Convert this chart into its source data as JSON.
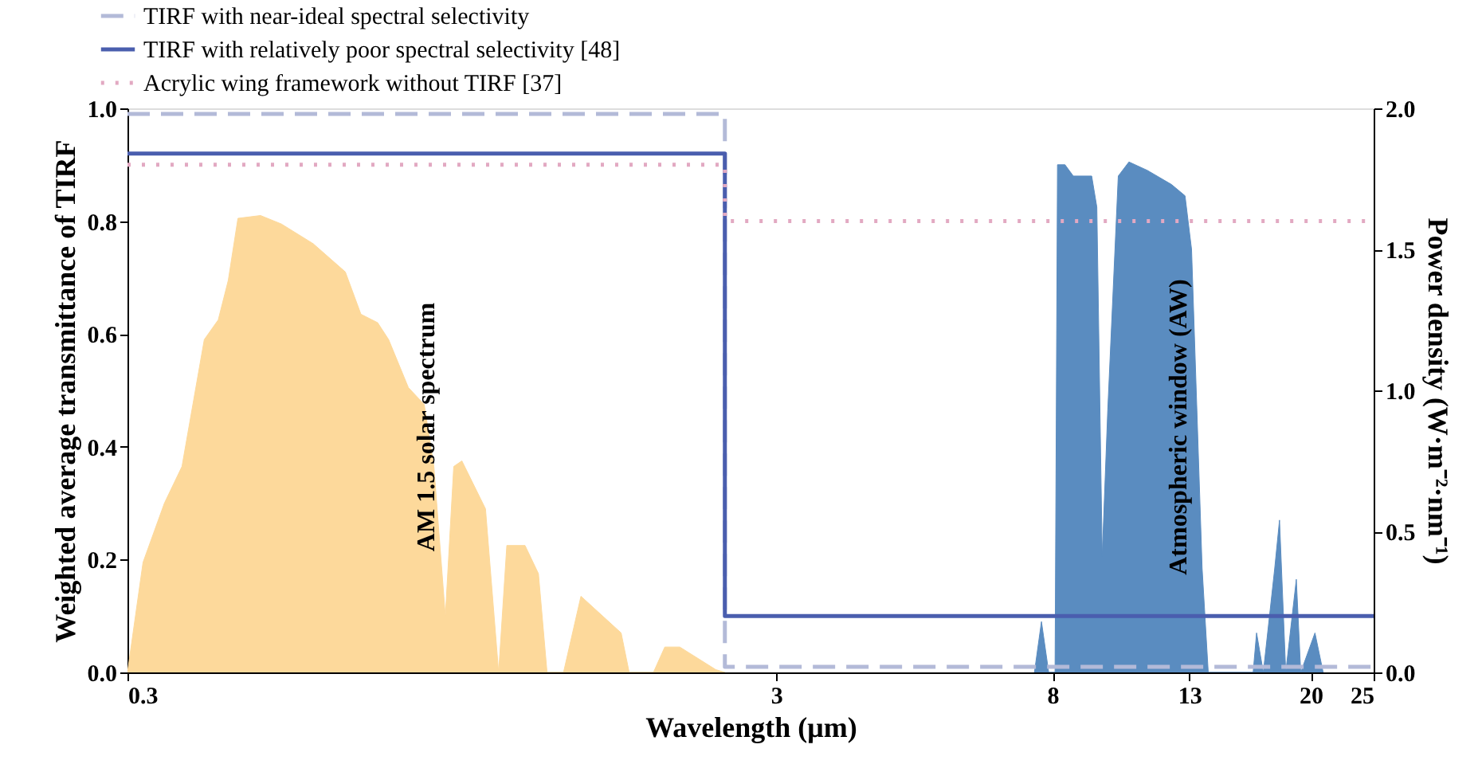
{
  "chart_data": {
    "type": "line",
    "xlabel": "Wavelength (μm)",
    "ylabel": "Weighted average transmittance of TIRF",
    "y2label": "Power density (W·m⁻²·nm⁻¹)",
    "log": "x",
    "grid": false,
    "legend": "top left",
    "xlim": [
      0.3,
      25
    ],
    "xticks": [
      0.3,
      3,
      8,
      13,
      20,
      25
    ],
    "ylim": [
      0,
      1
    ],
    "yticks": [
      {
        "value": 0,
        "label": "0.0"
      },
      0.2,
      0.4,
      0.6,
      0.8,
      {
        "value": 1,
        "label": "1.0"
      }
    ],
    "y2lim": [
      0,
      2
    ],
    "y2ticks": [
      {
        "value": 0,
        "label": "0.0"
      },
      0.5,
      {
        "value": 1,
        "label": "1.0"
      },
      1.5,
      {
        "value": 2,
        "label": "2.0"
      }
    ],
    "series": [
      {
        "type": "area",
        "axis": "y2",
        "color": "#fdd99b",
        "x": [
          0.3,
          0.317,
          0.342,
          0.364,
          0.394,
          0.414,
          0.429,
          0.444,
          0.481,
          0.518,
          0.58,
          0.65,
          0.687,
          0.729,
          0.758,
          0.813,
          0.86,
          0.89,
          0.927,
          0.955,
          0.983,
          1.069,
          1.12,
          1.153,
          1.23,
          1.29,
          1.33,
          1.41,
          1.5,
          1.73,
          1.78,
          1.94,
          2.02,
          2.13,
          2.42,
          2.5
        ],
        "values": [
          0,
          0.39,
          0.6,
          0.73,
          1.18,
          1.25,
          1.39,
          1.61,
          1.62,
          1.59,
          1.52,
          1.42,
          1.27,
          1.24,
          1.18,
          1.01,
          0.95,
          0.73,
          0.2,
          0.73,
          0.75,
          0.58,
          0,
          0.45,
          0.45,
          0.35,
          0,
          0,
          0.27,
          0.14,
          0,
          0,
          0.09,
          0.09,
          0.01,
          0
        ]
      },
      {
        "type": "area",
        "axis": "y2",
        "color": "#5a8cc0",
        "x": [
          7.5,
          7.69,
          7.89,
          8.07,
          8.14,
          8.36,
          8.61,
          9.19,
          9.36,
          9.54,
          9.73,
          10.1,
          10.49,
          11.2,
          12.2,
          12.8,
          13.1,
          13.6,
          13.9,
          16.3,
          16.5,
          16.9,
          17.6,
          17.9,
          18.3,
          19.0,
          19.3,
          20.3,
          20.9
        ],
        "values": [
          0,
          0.18,
          0,
          0,
          1.8,
          1.8,
          1.76,
          1.76,
          1.65,
          0.41,
          0.93,
          1.76,
          1.81,
          1.78,
          1.73,
          1.69,
          1.5,
          0.37,
          0,
          0,
          0.14,
          0,
          0.37,
          0.54,
          0,
          0.33,
          0,
          0.14,
          0
        ]
      },
      {
        "name": "TIRF with near-ideal spectral selectivity",
        "color": "#b3bad8",
        "line_style": "dashed",
        "x": [
          0.3,
          2.5,
          2.5,
          25
        ],
        "values": [
          0.99,
          0.99,
          0.01,
          0.01
        ]
      },
      {
        "name": "TIRF with relatively poor spectral selectivity [48]",
        "color": "#4a5eae",
        "line_style": "solid",
        "x": [
          0.3,
          2.5,
          2.5,
          25
        ],
        "values": [
          0.92,
          0.92,
          0.1,
          0.1
        ]
      },
      {
        "name": "Acrylic wing framework without TIRF [37]",
        "color": "#e2a9c2",
        "line_style": "dotted",
        "x": [
          0.3,
          2.5,
          2.5,
          25
        ],
        "values": [
          0.9,
          0.9,
          0.8,
          0.8
        ]
      }
    ],
    "annotations": [
      "AM 1.5 solar spectrum",
      "Atmospheric window (AW)"
    ]
  }
}
